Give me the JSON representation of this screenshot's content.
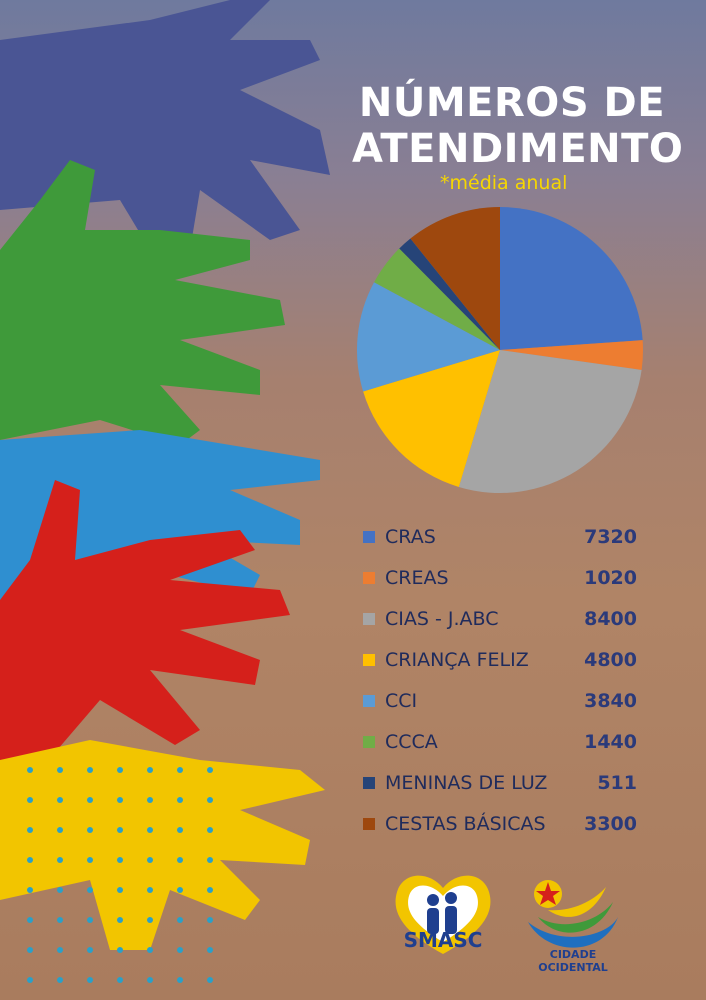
{
  "title_line1": "NÚMEROS  DE",
  "title_line2": "ATENDIMENTO",
  "subtitle": "*média anual",
  "chart_data": {
    "type": "pie",
    "title": "NÚMEROS DE ATENDIMENTO",
    "subtitle": "*média anual",
    "categories": [
      "CRAS",
      "CREAS",
      "CIAS - J.ABC",
      "CRIANÇA FELIZ",
      "CCI",
      "CCCA",
      "MENINAS DE LUZ",
      "CESTAS BÁSICAS"
    ],
    "values": [
      7320,
      1020,
      8400,
      4800,
      3840,
      1440,
      511,
      3300
    ],
    "colors": [
      "#4472c4",
      "#ed7d31",
      "#a5a5a5",
      "#ffc000",
      "#5b9bd5",
      "#70ad47",
      "#264478",
      "#9e480e"
    ],
    "legend": "bottom"
  },
  "legend_items": [
    {
      "label": "CRAS",
      "value": "7320"
    },
    {
      "label": "CREAS",
      "value": "1020"
    },
    {
      "label": "CIAS - J.ABC",
      "value": "8400"
    },
    {
      "label": "CRIANÇA FELIZ",
      "value": "4800"
    },
    {
      "label": "CCI",
      "value": "3840"
    },
    {
      "label": "CCCA",
      "value": "1440"
    },
    {
      "label": "MENINAS DE LUZ",
      "value": "511"
    },
    {
      "label": "CESTAS BÁSICAS",
      "value": "3300"
    }
  ],
  "logos": {
    "smasc_name": "SMASC",
    "city_name": "CIDADE OCIDENTAL"
  }
}
